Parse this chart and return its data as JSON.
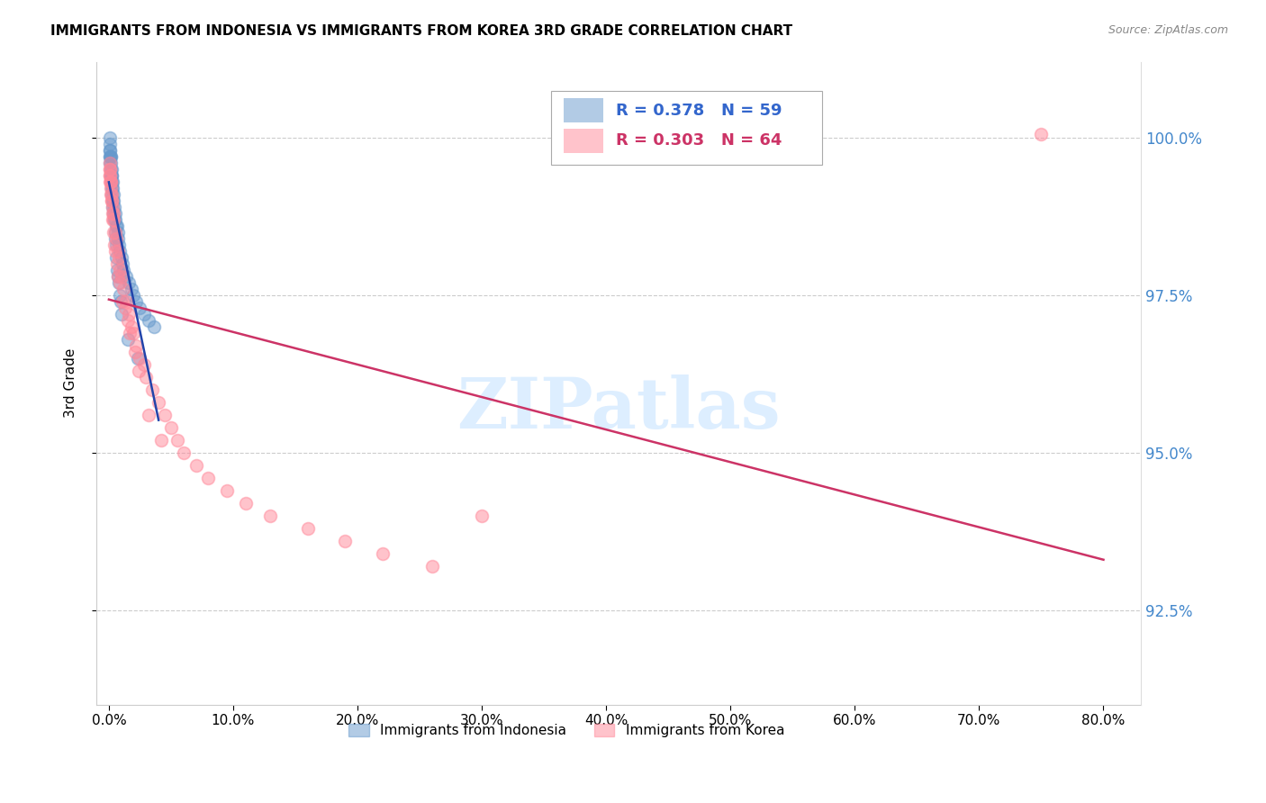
{
  "title": "IMMIGRANTS FROM INDONESIA VS IMMIGRANTS FROM KOREA 3RD GRADE CORRELATION CHART",
  "source": "Source: ZipAtlas.com",
  "ylabel": "3rd Grade",
  "xlim": [
    -1.0,
    83.0
  ],
  "ylim": [
    91.0,
    101.2
  ],
  "yticks": [
    92.5,
    95.0,
    97.5,
    100.0
  ],
  "xticks": [
    0.0,
    10.0,
    20.0,
    30.0,
    40.0,
    50.0,
    60.0,
    70.0,
    80.0
  ],
  "xtick_labels": [
    "0.0%",
    "10.0%",
    "20.0%",
    "30.0%",
    "40.0%",
    "50.0%",
    "60.0%",
    "70.0%",
    "80.0%"
  ],
  "ytick_labels": [
    "92.5%",
    "95.0%",
    "97.5%",
    "100.0%"
  ],
  "legend1_label": "Immigrants from Indonesia",
  "legend2_label": "Immigrants from Korea",
  "R1": 0.378,
  "N1": 59,
  "R2": 0.303,
  "N2": 64,
  "color1": "#6699cc",
  "color2": "#ff8899",
  "line1_color": "#2244aa",
  "line2_color": "#cc3366",
  "watermark": "ZIPatlas",
  "watermark_color": "#ddeeff",
  "indonesia_x": [
    0.05,
    0.08,
    0.1,
    0.12,
    0.15,
    0.18,
    0.2,
    0.22,
    0.25,
    0.28,
    0.3,
    0.35,
    0.4,
    0.45,
    0.5,
    0.55,
    0.6,
    0.65,
    0.7,
    0.75,
    0.8,
    0.9,
    1.0,
    1.1,
    1.2,
    1.4,
    1.6,
    1.8,
    2.0,
    2.2,
    2.5,
    2.8,
    3.2,
    3.6,
    0.05,
    0.07,
    0.09,
    0.11,
    0.13,
    0.16,
    0.19,
    0.23,
    0.26,
    0.29,
    0.33,
    0.38,
    0.42,
    0.48,
    0.52,
    0.58,
    0.62,
    0.68,
    0.72,
    0.78,
    0.85,
    0.95,
    1.05,
    1.5,
    2.3
  ],
  "indonesia_y": [
    100.0,
    99.9,
    99.8,
    99.7,
    99.7,
    99.6,
    99.5,
    99.4,
    99.4,
    99.3,
    99.2,
    99.1,
    99.0,
    98.9,
    98.8,
    98.7,
    98.6,
    98.6,
    98.5,
    98.4,
    98.3,
    98.2,
    98.1,
    98.0,
    97.9,
    97.8,
    97.7,
    97.6,
    97.5,
    97.4,
    97.3,
    97.2,
    97.1,
    97.0,
    99.8,
    99.7,
    99.7,
    99.6,
    99.5,
    99.4,
    99.3,
    99.2,
    99.1,
    99.0,
    98.9,
    98.8,
    98.7,
    98.5,
    98.4,
    98.3,
    98.1,
    97.9,
    97.8,
    97.7,
    97.5,
    97.4,
    97.2,
    96.8,
    96.5
  ],
  "korea_x": [
    0.05,
    0.08,
    0.1,
    0.12,
    0.15,
    0.2,
    0.25,
    0.3,
    0.35,
    0.4,
    0.5,
    0.6,
    0.7,
    0.8,
    0.9,
    1.0,
    1.2,
    1.4,
    1.6,
    1.8,
    2.0,
    2.2,
    2.5,
    2.8,
    3.0,
    3.5,
    4.0,
    4.5,
    5.0,
    5.5,
    6.0,
    7.0,
    8.0,
    9.5,
    11.0,
    13.0,
    16.0,
    19.0,
    22.0,
    26.0,
    0.07,
    0.09,
    0.11,
    0.14,
    0.18,
    0.22,
    0.28,
    0.33,
    0.38,
    0.45,
    0.55,
    0.65,
    0.75,
    0.85,
    1.1,
    1.3,
    1.5,
    1.7,
    2.1,
    2.4,
    3.2,
    4.2,
    30.0,
    75.0
  ],
  "korea_y": [
    99.6,
    99.5,
    99.4,
    99.3,
    99.3,
    99.1,
    99.0,
    98.9,
    98.8,
    98.7,
    98.5,
    98.4,
    98.2,
    98.1,
    97.9,
    97.8,
    97.6,
    97.4,
    97.2,
    97.0,
    96.9,
    96.7,
    96.5,
    96.4,
    96.2,
    96.0,
    95.8,
    95.6,
    95.4,
    95.2,
    95.0,
    94.8,
    94.6,
    94.4,
    94.2,
    94.0,
    93.8,
    93.6,
    93.4,
    93.2,
    99.5,
    99.4,
    99.3,
    99.2,
    99.1,
    99.0,
    98.8,
    98.7,
    98.5,
    98.3,
    98.2,
    98.0,
    97.8,
    97.7,
    97.4,
    97.3,
    97.1,
    96.9,
    96.6,
    96.3,
    95.6,
    95.2,
    94.0,
    100.05
  ]
}
